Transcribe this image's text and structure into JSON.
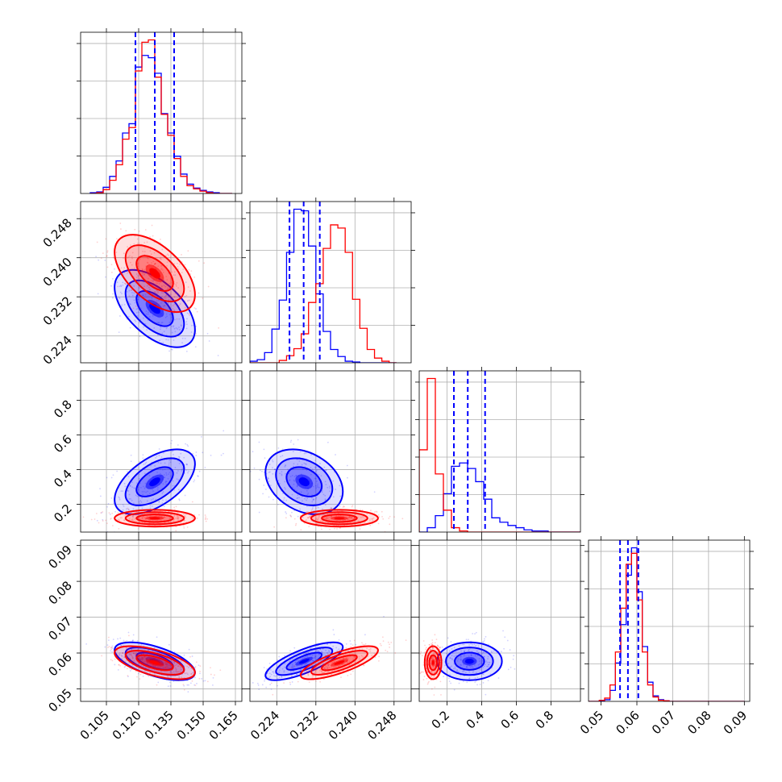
{
  "chart_data": {
    "type": "corner",
    "grid": true,
    "series": [
      {
        "name": "",
        "color": "#0000ff"
      },
      {
        "name": "",
        "color": "#ff0000"
      }
    ],
    "colors": {
      "series_a": "#0000ff",
      "series_b": "#ff0000",
      "quantile_lines": "#0000ff"
    },
    "parameters": [
      {
        "range": [
          0.093,
          0.168
        ],
        "ticks": [
          0.105,
          0.12,
          0.135,
          0.15,
          0.165
        ],
        "tick_labels": [
          "0.105",
          "0.120",
          "0.135",
          "0.150",
          "0.165"
        ],
        "quantiles": [
          0.1185,
          0.1275,
          0.1365
        ],
        "hist_edges": [
          0.0975,
          0.1005,
          0.1035,
          0.1065,
          0.1095,
          0.1125,
          0.1155,
          0.1185,
          0.1215,
          0.1245,
          0.1275,
          0.1305,
          0.1335,
          0.1365,
          0.1395,
          0.1425,
          0.1455,
          0.1485,
          0.1515,
          0.1545,
          0.1575,
          0.1605,
          0.1635
        ],
        "hist": [
          {
            "series": 0,
            "counts": [
              1,
              2,
              8,
              22,
              42,
              78,
              90,
              163,
              178,
              175,
              155,
              103,
              78,
              48,
              25,
              12,
              7,
              4,
              2,
              1,
              0,
              0
            ]
          },
          {
            "series": 1,
            "counts": [
              0,
              1,
              5,
              17,
              37,
              70,
              85,
              158,
              195,
              198,
              150,
              102,
              75,
              45,
              22,
              10,
              6,
              3,
              1,
              0,
              0,
              0
            ]
          }
        ]
      },
      {
        "range": [
          0.2185,
          0.2515
        ],
        "ticks": [
          0.224,
          0.232,
          0.24,
          0.248
        ],
        "tick_labels": [
          "0.224",
          "0.232",
          "0.240",
          "0.248"
        ],
        "quantiles": [
          0.2266,
          0.2295,
          0.2328
        ],
        "hist_edges": [
          0.2185,
          0.22,
          0.2215,
          0.223,
          0.2245,
          0.226,
          0.2275,
          0.229,
          0.2305,
          0.232,
          0.2335,
          0.235,
          0.2365,
          0.238,
          0.2395,
          0.241,
          0.2425,
          0.244,
          0.2455,
          0.247,
          0.2485
        ],
        "hist": [
          {
            "series": 0,
            "counts": [
              2,
              4,
              13,
              43,
              80,
              141,
              196,
              194,
              149,
              88,
              40,
              17,
              8,
              2,
              1,
              0,
              0,
              0,
              0,
              0
            ]
          },
          {
            "series": 1,
            "counts": [
              0,
              0,
              0,
              0,
              3,
              9,
              18,
              37,
              77,
              101,
              146,
              176,
              172,
              141,
              81,
              44,
              17,
              6,
              2,
              0
            ]
          }
        ]
      },
      {
        "range": [
          0.04,
          0.97
        ],
        "ticks": [
          0.2,
          0.4,
          0.6,
          0.8
        ],
        "tick_labels": [
          "0.2",
          "0.4",
          "0.6",
          "0.8"
        ],
        "quantiles": [
          0.24,
          0.32,
          0.42
        ],
        "hist_edges": [
          0.04,
          0.0865,
          0.133,
          0.1795,
          0.226,
          0.2725,
          0.319,
          0.3655,
          0.412,
          0.4585,
          0.505,
          0.5515,
          0.598,
          0.6445,
          0.691,
          0.7375,
          0.784,
          0.8305,
          0.877,
          0.9235,
          0.97
        ],
        "hist": [
          {
            "series": 0,
            "counts": [
              0,
              4,
              15,
              35,
              60,
              63,
              58,
              46,
              30,
              13,
              9,
              6,
              4,
              2,
              1,
              1,
              0,
              0,
              0,
              0
            ]
          },
          {
            "series": 1,
            "counts": [
              75,
              140,
              53,
              20,
              4,
              1,
              0,
              0,
              0,
              0,
              0,
              0,
              0,
              0,
              0,
              0,
              0,
              0,
              0,
              0
            ]
          }
        ]
      },
      {
        "range": [
          0.0465,
          0.0915
        ],
        "ticks": [
          0.05,
          0.06,
          0.07,
          0.08,
          0.09
        ],
        "tick_labels": [
          "0.05",
          "0.06",
          "0.07",
          "0.08",
          "0.09"
        ],
        "tick_labels_y": [
          "0.05",
          "0.06",
          "0.07",
          "0.08",
          "0.09"
        ],
        "quantiles": [
          0.0553,
          0.0575,
          0.0604
        ],
        "hist_edges": [
          0.0465,
          0.048,
          0.0495,
          0.051,
          0.0525,
          0.054,
          0.0555,
          0.057,
          0.0585,
          0.06,
          0.0615,
          0.063,
          0.0645,
          0.066,
          0.0675,
          0.069,
          0.0705,
          0.072,
          0.0735,
          0.075,
          0.09
        ],
        "hist": [
          {
            "series": 0,
            "counts": [
              0,
              0,
              1,
              3,
              20,
              70,
              140,
              230,
              280,
              200,
              100,
              35,
              10,
              3,
              1,
              0,
              0,
              0,
              0,
              0
            ]
          },
          {
            "series": 1,
            "counts": [
              0,
              0,
              2,
              6,
              30,
              90,
              170,
              250,
              270,
              185,
              90,
              30,
              8,
              2,
              1,
              0,
              0,
              0,
              0,
              0
            ]
          }
        ]
      }
    ],
    "pairs": [
      {
        "row": 1,
        "col": 0,
        "blobs": [
          {
            "series": 0,
            "mean": [
              0.1275,
              0.2296
            ],
            "std": [
              0.0085,
              0.0036
            ],
            "corr": -0.55
          },
          {
            "series": 1,
            "mean": [
              0.1275,
              0.2368
            ],
            "std": [
              0.0085,
              0.0036
            ],
            "corr": -0.55
          }
        ]
      },
      {
        "row": 2,
        "col": 0,
        "blobs": [
          {
            "series": 0,
            "mean": [
              0.1275,
              0.33
            ],
            "std": [
              0.0085,
              0.085
            ],
            "corr": 0.55
          },
          {
            "series": 1,
            "mean": [
              0.1275,
              0.12
            ],
            "std": [
              0.0085,
              0.022
            ],
            "corr": 0.0
          }
        ]
      },
      {
        "row": 2,
        "col": 1,
        "blobs": [
          {
            "series": 0,
            "mean": [
              0.2296,
              0.33
            ],
            "std": [
              0.0036,
              0.085
            ],
            "corr": -0.3
          },
          {
            "series": 1,
            "mean": [
              0.2368,
              0.12
            ],
            "std": [
              0.0036,
              0.022
            ],
            "corr": 0.0
          }
        ]
      },
      {
        "row": 3,
        "col": 0,
        "blobs": [
          {
            "series": 0,
            "mean": [
              0.1275,
              0.0577
            ],
            "std": [
              0.0085,
              0.0024
            ],
            "corr": -0.6
          },
          {
            "series": 1,
            "mean": [
              0.1275,
              0.0573
            ],
            "std": [
              0.0085,
              0.0021
            ],
            "corr": -0.6
          }
        ]
      },
      {
        "row": 3,
        "col": 1,
        "blobs": [
          {
            "series": 0,
            "mean": [
              0.2296,
              0.0577
            ],
            "std": [
              0.0036,
              0.0024
            ],
            "corr": 0.75
          },
          {
            "series": 1,
            "mean": [
              0.2368,
              0.0573
            ],
            "std": [
              0.0036,
              0.0021
            ],
            "corr": 0.75
          }
        ]
      },
      {
        "row": 3,
        "col": 2,
        "blobs": [
          {
            "series": 0,
            "mean": [
              0.33,
              0.0577
            ],
            "std": [
              0.085,
              0.0024
            ],
            "corr": 0.0
          },
          {
            "series": 1,
            "mean": [
              0.12,
              0.0573
            ],
            "std": [
              0.022,
              0.0021
            ],
            "corr": 0.0
          }
        ]
      }
    ],
    "contour_levels_sigma": [
      1.0,
      1.6,
      2.2
    ],
    "xlabels": [
      "",
      "",
      "",
      ""
    ],
    "ylabels": [
      "",
      "",
      "",
      ""
    ],
    "title": ""
  }
}
